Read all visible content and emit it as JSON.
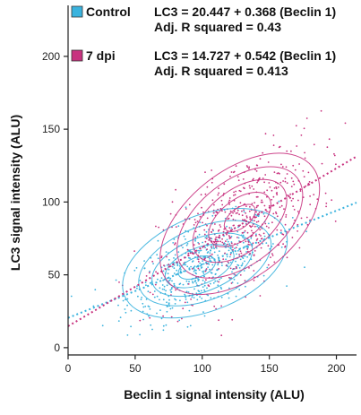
{
  "chart_data": {
    "type": "scatter",
    "xlabel": "Beclin 1 signal intensity (ALU)",
    "ylabel": "LC3 signal intensity (ALU)",
    "xlim": [
      0,
      215
    ],
    "ylim": [
      -5,
      235
    ],
    "x_ticks": [
      0,
      50,
      100,
      150,
      200
    ],
    "y_ticks": [
      0,
      50,
      100,
      150,
      200
    ],
    "x_tick_labels": [
      "0",
      "50",
      "100",
      "150",
      "200"
    ],
    "y_tick_labels": [
      "0",
      "50",
      "100",
      "150",
      "200"
    ],
    "legend_position": "top-left",
    "series": [
      {
        "name": "Control",
        "color": "#3ab3de",
        "fit": {
          "intercept": 20.447,
          "slope": 0.368,
          "x_range": [
            0,
            215
          ]
        },
        "equation": "LC3 = 20.447 + 0.368 (Beclin 1)",
        "r_squared": "Adj. R squared = 0.43",
        "cloud": {
          "center": [
            100,
            55
          ],
          "spread": [
            28,
            14
          ],
          "n": 520
        },
        "contours": [
          {
            "cx": 102,
            "cy": 58,
            "rx": 62,
            "ry": 34,
            "rot": 22
          },
          {
            "cx": 102,
            "cy": 58,
            "rx": 50,
            "ry": 26,
            "rot": 22
          },
          {
            "cx": 100,
            "cy": 57,
            "rx": 38,
            "ry": 19,
            "rot": 22
          },
          {
            "cx": 98,
            "cy": 56,
            "rx": 26,
            "ry": 13,
            "rot": 22
          },
          {
            "cx": 96,
            "cy": 55,
            "rx": 14,
            "ry": 7,
            "rot": 22
          }
        ]
      },
      {
        "name": "7 dpi",
        "color": "#c8327f",
        "fit": {
          "intercept": 14.727,
          "slope": 0.542,
          "x_range": [
            0,
            215
          ]
        },
        "equation": "LC3 = 14.727 + 0.542 (Beclin 1)",
        "r_squared": "Adj. R squared = 0.413",
        "cloud": {
          "center": [
            128,
            85
          ],
          "spread": [
            30,
            22
          ],
          "n": 520
        },
        "contours": [
          {
            "cx": 128,
            "cy": 85,
            "rx": 66,
            "ry": 38,
            "rot": 38
          },
          {
            "cx": 128,
            "cy": 86,
            "rx": 52,
            "ry": 30,
            "rot": 38
          },
          {
            "cx": 128,
            "cy": 87,
            "rx": 39,
            "ry": 22,
            "rot": 38
          },
          {
            "cx": 128,
            "cy": 88,
            "rx": 26,
            "ry": 14,
            "rot": 38
          },
          {
            "cx": 128,
            "cy": 89,
            "rx": 13,
            "ry": 7,
            "rot": 38
          }
        ]
      }
    ]
  }
}
